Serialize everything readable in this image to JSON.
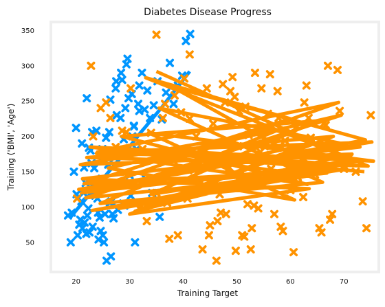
{
  "chart_data": {
    "type": "scatter",
    "title": "Diabetes Disease Progress",
    "xlabel": "Training Target",
    "ylabel": "Training ('BMI', 'Age')",
    "xlim": [
      15.3,
      76.5
    ],
    "ylim": [
      8,
      362
    ],
    "xticks": [
      "20",
      "30",
      "40",
      "50",
      "60",
      "70"
    ],
    "xtick_values": [
      20,
      30,
      40,
      50,
      60,
      70
    ],
    "yticks": [
      "50",
      "100",
      "150",
      "200",
      "250",
      "300",
      "350"
    ],
    "ytick_values": [
      50,
      100,
      150,
      200,
      250,
      300,
      350
    ],
    "grid": false,
    "colors": {
      "series_blue": "#0096ff",
      "series_orange": "#ff9300",
      "frame": "#eeeeee"
    },
    "series": [
      {
        "marker": "X",
        "color": "#0096ff",
        "x": [
          18.5,
          19.2,
          20.1,
          20.6,
          21.1,
          21.4,
          21.9,
          22.3,
          22.7,
          23.1,
          23.4,
          23.8,
          24.0,
          24.4,
          24.8,
          25.2,
          25.6,
          26.0,
          26.4,
          26.8,
          27.2,
          27.6,
          28.0,
          28.4,
          28.8,
          29.2,
          29.6,
          30.0,
          30.4,
          30.8,
          31.3,
          31.8,
          32.3,
          32.8,
          33.3,
          33.8,
          34.5,
          35.2,
          36.0,
          36.8,
          37.5,
          38.2,
          39.0,
          39.8,
          40.5,
          41.3,
          19.0,
          20.3,
          21.0,
          21.8,
          22.5,
          23.3,
          24.1,
          24.9,
          25.7,
          26.5,
          19.6,
          20.8,
          21.5,
          22.1,
          22.9,
          23.6,
          24.6,
          25.3,
          26.2,
          27.0,
          27.8,
          28.6,
          29.4,
          30.2,
          31.0,
          20.0,
          21.2,
          22.0,
          23.0,
          24.2,
          25.0,
          26.3,
          27.4,
          28.3,
          29.0,
          30.5,
          31.6,
          33.0,
          34.2,
          29.8,
          30.8,
          27.5,
          28.9,
          26.6,
          31.8,
          33.6,
          35.6,
          22.4,
          23.9,
          25.4,
          24.7,
          21.6
        ],
        "y": [
          88,
          92,
          118,
          75,
          190,
          120,
          62,
          98,
          180,
          72,
          155,
          208,
          112,
          85,
          140,
          50,
          198,
          160,
          252,
          90,
          170,
          230,
          130,
          290,
          105,
          240,
          310,
          145,
          260,
          215,
          182,
          272,
          290,
          238,
          265,
          226,
          244,
          278,
          224,
          262,
          304,
          246,
          272,
          286,
          335,
          345,
          50,
          60,
          108,
          134,
          64,
          128,
          92,
          182,
          24,
          30,
          150,
          82,
          156,
          88,
          162,
          116,
          66,
          170,
          206,
          84,
          96,
          280,
          302,
          116,
          50,
          212,
          70,
          254,
          206,
          54,
          60,
          106,
          268,
          226,
          102,
          200,
          246,
          140,
          120,
          254,
          214,
          278,
          196,
          108,
          236,
          106,
          86,
          184,
          126,
          90,
          168,
          78
        ]
      },
      {
        "marker": "X",
        "color": "#ff9300",
        "x": [
          20.2,
          22.8,
          23.2,
          25.6,
          27.4,
          28.6,
          30.2,
          31.8,
          32.4,
          34.0,
          35.0,
          36.2,
          37.4,
          38.4,
          39.6,
          40.2,
          41.2,
          42.0,
          42.8,
          43.6,
          44.4,
          45.0,
          45.6,
          46.2,
          46.8,
          47.4,
          48.0,
          48.6,
          49.2,
          49.8,
          50.4,
          51.0,
          51.6,
          52.2,
          52.8,
          53.4,
          54.0,
          54.6,
          55.2,
          55.8,
          56.4,
          57.0,
          57.6,
          58.2,
          58.8,
          59.4,
          60.0,
          60.6,
          61.2,
          61.8,
          62.4,
          63.0,
          63.8,
          64.6,
          65.4,
          66.2,
          67.0,
          67.8,
          68.8,
          70.0,
          71.0,
          72.2,
          73.5,
          74.2,
          75.0,
          35.0,
          41.2,
          39.0,
          43.2,
          46.4,
          48.8,
          50.6,
          52.6,
          55.6,
          57.8,
          60.2,
          62.6,
          65.8,
          67.4,
          69.2,
          44.0,
          47.0,
          49.6,
          51.4,
          53.2,
          56.2,
          58.6,
          61.4,
          36.6,
          38.2,
          40.8,
          42.4,
          44.8,
          47.8,
          50.2,
          52.0,
          54.4,
          59.0,
          63.4,
          66.6,
          26.4,
          24.6,
          29.4,
          33.2,
          37.0
        ],
        "y": [
          112,
          300,
          200,
          248,
          185,
          208,
          268,
          98,
          182,
          205,
          344,
          226,
          55,
          258,
          234,
          282,
          316,
          152,
          172,
          40,
          268,
          74,
          218,
          24,
          118,
          274,
          90,
          156,
          284,
          38,
          236,
          60,
          242,
          202,
          70,
          290,
          98,
          268,
          186,
          232,
          154,
          90,
          264,
          72,
          206,
          176,
          124,
          36,
          214,
          160,
          114,
          272,
          198,
          146,
          70,
          218,
          300,
          90,
          294,
          154,
          170,
          150,
          108,
          70,
          230,
          120,
          225,
          60,
          134,
          80,
          264,
          144,
          40,
          212,
          226,
          184,
          248,
          64,
          82,
          236,
          178,
          92,
          256,
          58,
          102,
          288,
          66,
          142,
          246,
          166,
          112,
          200,
          60,
          248,
          186,
          104,
          178,
          194,
          226,
          216,
          226,
          240,
          206,
          80,
          106
        ],
        "line_y_pairs_note": ""
      }
    ],
    "blue_line_x": [
      18.8,
      20.0,
      21.0,
      22.0,
      23.0,
      24.0,
      25.0,
      26.0,
      27.0,
      28.0,
      29.0,
      30.0,
      31.0,
      32.0,
      33.0,
      34.0,
      35.0,
      36.0,
      37.0,
      38.0,
      39.0,
      40.0,
      41.2
    ],
    "blue_line_y": [
      84,
      95,
      104,
      113,
      121,
      130,
      140,
      149,
      158,
      167,
      176,
      186,
      195,
      205,
      214,
      223,
      232,
      241,
      251,
      261,
      270,
      280,
      292
    ],
    "orange_line_x": [
      35.0,
      72.5,
      21.0,
      69.0,
      24.0,
      75.2,
      20.5,
      70.5,
      23.0,
      62.0,
      21.5,
      60.0,
      33.0,
      74.5,
      22.0,
      68.0,
      30.0,
      63.5,
      21.2,
      73.0,
      35.5,
      66.0,
      24.5,
      58.0,
      20.8,
      71.5,
      28.0,
      64.0,
      22.6,
      75.5,
      33.5,
      60.8,
      26.0,
      69.5,
      21.8,
      66.8,
      38.0,
      74.0,
      25.5,
      62.8,
      31.0,
      71.0,
      23.8,
      63.2,
      28.5,
      65.0,
      34.0,
      70.0,
      27.0,
      73.8
    ],
    "orange_line_y": [
      292,
      164,
      120,
      248,
      178,
      192,
      125,
      154,
      95,
      150,
      133,
      225,
      283,
      158,
      170,
      200,
      90,
      126,
      140,
      185,
      240,
      135,
      105,
      210,
      160,
      175,
      98,
      145,
      185,
      165,
      205,
      110,
      155,
      230,
      113,
      148,
      270,
      195,
      128,
      188,
      94,
      168,
      176,
      132,
      200,
      222,
      118,
      160,
      182,
      150
    ]
  }
}
